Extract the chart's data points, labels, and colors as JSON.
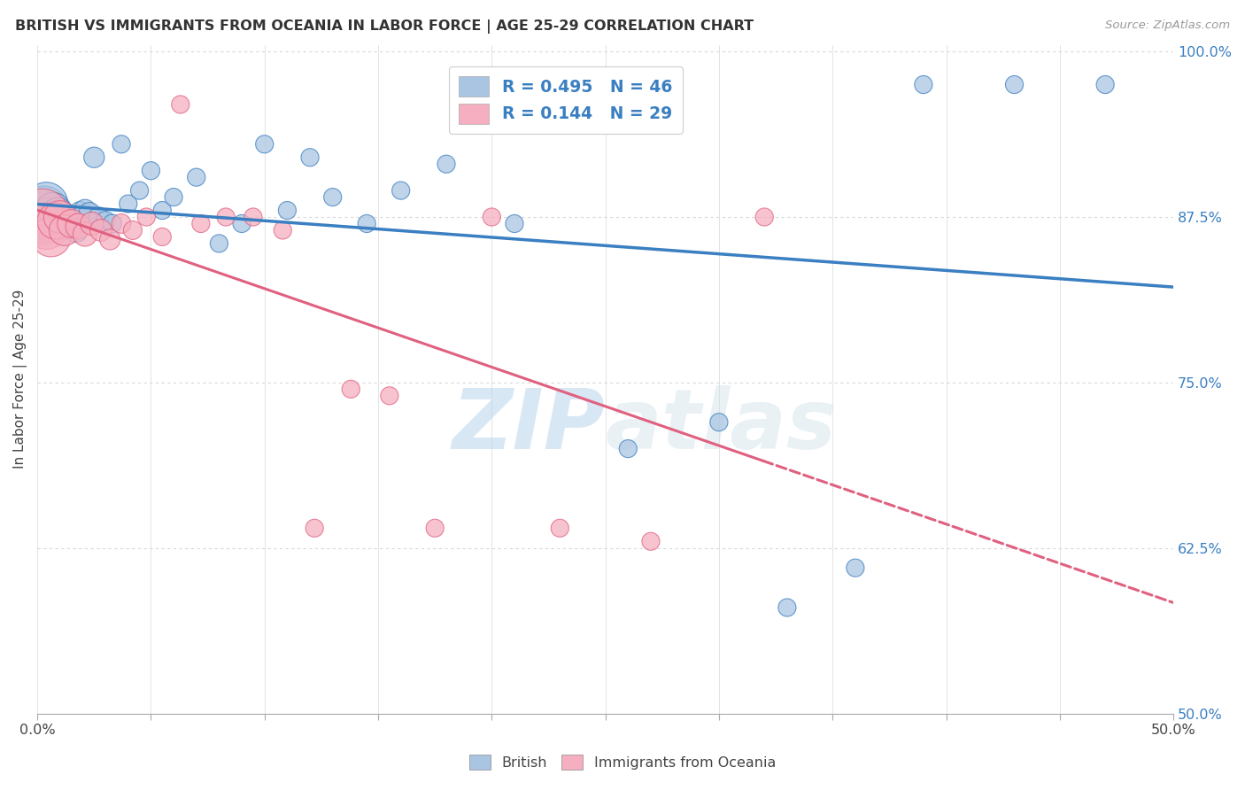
{
  "title": "BRITISH VS IMMIGRANTS FROM OCEANIA IN LABOR FORCE | AGE 25-29 CORRELATION CHART",
  "source": "Source: ZipAtlas.com",
  "ylabel": "In Labor Force | Age 25-29",
  "xlim": [
    0.0,
    0.5
  ],
  "ylim": [
    0.5,
    1.005
  ],
  "yticks": [
    0.5,
    0.625,
    0.75,
    0.875,
    1.0
  ],
  "ytick_labels": [
    "50.0%",
    "62.5%",
    "75.0%",
    "87.5%",
    "100.0%"
  ],
  "xticks": [
    0.0,
    0.05,
    0.1,
    0.15,
    0.2,
    0.25,
    0.3,
    0.35,
    0.4,
    0.45,
    0.5
  ],
  "british_color": "#aac5e2",
  "oceania_color": "#f5afc0",
  "british_line_color": "#3a7fc1",
  "oceania_line_color": "#e06080",
  "R_british": 0.495,
  "N_british": 46,
  "R_oceania": 0.144,
  "N_oceania": 29,
  "british_x": [
    0.002,
    0.003,
    0.004,
    0.005,
    0.006,
    0.007,
    0.008,
    0.009,
    0.01,
    0.011,
    0.012,
    0.013,
    0.015,
    0.017,
    0.019,
    0.021,
    0.023,
    0.025,
    0.027,
    0.03,
    0.033,
    0.037,
    0.04,
    0.045,
    0.05,
    0.055,
    0.06,
    0.07,
    0.08,
    0.09,
    0.1,
    0.11,
    0.12,
    0.13,
    0.145,
    0.16,
    0.18,
    0.21,
    0.23,
    0.26,
    0.3,
    0.33,
    0.36,
    0.39,
    0.43,
    0.47
  ],
  "british_y": [
    0.875,
    0.88,
    0.885,
    0.875,
    0.87,
    0.88,
    0.875,
    0.878,
    0.872,
    0.876,
    0.868,
    0.874,
    0.87,
    0.865,
    0.878,
    0.88,
    0.878,
    0.92,
    0.875,
    0.872,
    0.87,
    0.93,
    0.885,
    0.895,
    0.91,
    0.88,
    0.89,
    0.905,
    0.855,
    0.87,
    0.93,
    0.88,
    0.92,
    0.89,
    0.87,
    0.895,
    0.915,
    0.87,
    0.96,
    0.7,
    0.72,
    0.58,
    0.61,
    0.975,
    0.975,
    0.975
  ],
  "british_size": [
    500,
    450,
    350,
    280,
    260,
    240,
    200,
    180,
    160,
    150,
    140,
    130,
    120,
    110,
    100,
    90,
    85,
    80,
    75,
    70,
    65,
    60,
    60,
    60,
    60,
    60,
    60,
    60,
    60,
    60,
    60,
    60,
    60,
    60,
    60,
    60,
    60,
    60,
    60,
    60,
    60,
    60,
    60,
    60,
    60,
    60
  ],
  "oceania_x": [
    0.002,
    0.004,
    0.006,
    0.008,
    0.01,
    0.012,
    0.015,
    0.018,
    0.021,
    0.024,
    0.028,
    0.032,
    0.037,
    0.042,
    0.048,
    0.055,
    0.063,
    0.072,
    0.083,
    0.095,
    0.108,
    0.122,
    0.138,
    0.155,
    0.175,
    0.2,
    0.23,
    0.27,
    0.32
  ],
  "oceania_y": [
    0.875,
    0.868,
    0.86,
    0.872,
    0.875,
    0.865,
    0.87,
    0.868,
    0.862,
    0.87,
    0.865,
    0.858,
    0.87,
    0.865,
    0.875,
    0.86,
    0.96,
    0.87,
    0.875,
    0.875,
    0.865,
    0.64,
    0.745,
    0.74,
    0.64,
    0.875,
    0.64,
    0.63,
    0.875
  ],
  "oceania_size": [
    600,
    400,
    300,
    250,
    200,
    180,
    150,
    120,
    110,
    100,
    90,
    80,
    70,
    65,
    60,
    60,
    60,
    60,
    60,
    60,
    60,
    60,
    60,
    60,
    60,
    60,
    60,
    60,
    60
  ],
  "watermark_zip": "ZIP",
  "watermark_atlas": "atlas",
  "background_color": "#ffffff",
  "grid_color": "#d8d8d8"
}
